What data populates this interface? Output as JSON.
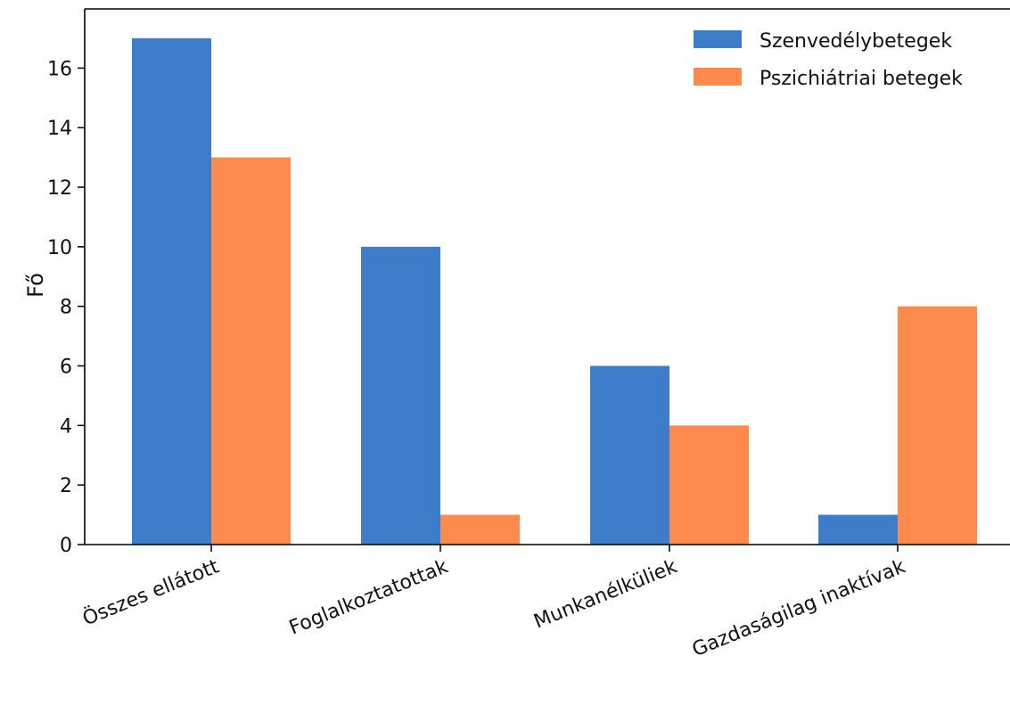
{
  "chart_data": {
    "type": "bar",
    "title": "",
    "xlabel": "",
    "ylabel": "Fő",
    "ylim": [
      0,
      17.2
    ],
    "yticks": [
      0,
      2,
      4,
      6,
      8,
      10,
      12,
      14,
      16
    ],
    "grid": false,
    "legend_position": "top-right",
    "categories": [
      "Összes ellátott",
      "Foglalkoztatottak",
      "Munkanélküliek",
      "Gazdaságilag inaktívak"
    ],
    "series": [
      {
        "name": "Szenvedélybetegek",
        "color": "#3d7cc9",
        "values": [
          17,
          10,
          6,
          1
        ]
      },
      {
        "name": "Pszichiátriai betegek",
        "color": "#fb8a4c",
        "values": [
          13,
          1,
          4,
          8
        ]
      }
    ]
  }
}
